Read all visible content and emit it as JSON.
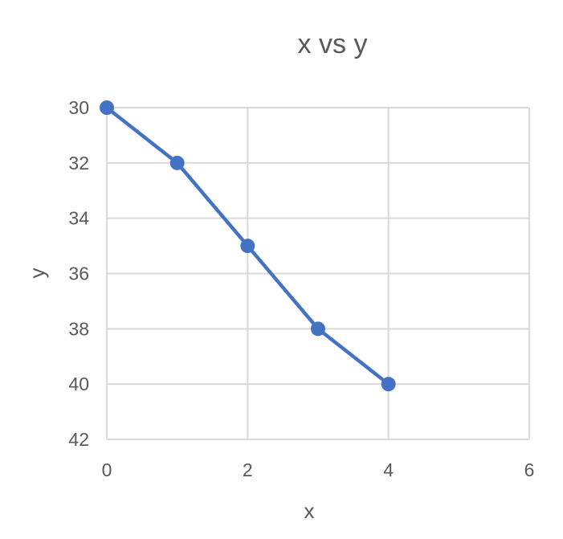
{
  "chart_data": {
    "type": "line",
    "title": "x vs y",
    "xlabel": "x",
    "ylabel": "y",
    "xlim": [
      0,
      6
    ],
    "ylim": [
      30,
      42
    ],
    "y_reversed": true,
    "x_ticks": [
      0,
      2,
      4,
      6
    ],
    "y_ticks": [
      30,
      32,
      34,
      36,
      38,
      40,
      42
    ],
    "grid": true,
    "legend": "none",
    "series": [
      {
        "color": "#4472c4",
        "x": [
          0,
          1,
          2,
          3,
          4
        ],
        "y": [
          30,
          32,
          35,
          38,
          40
        ]
      }
    ]
  }
}
